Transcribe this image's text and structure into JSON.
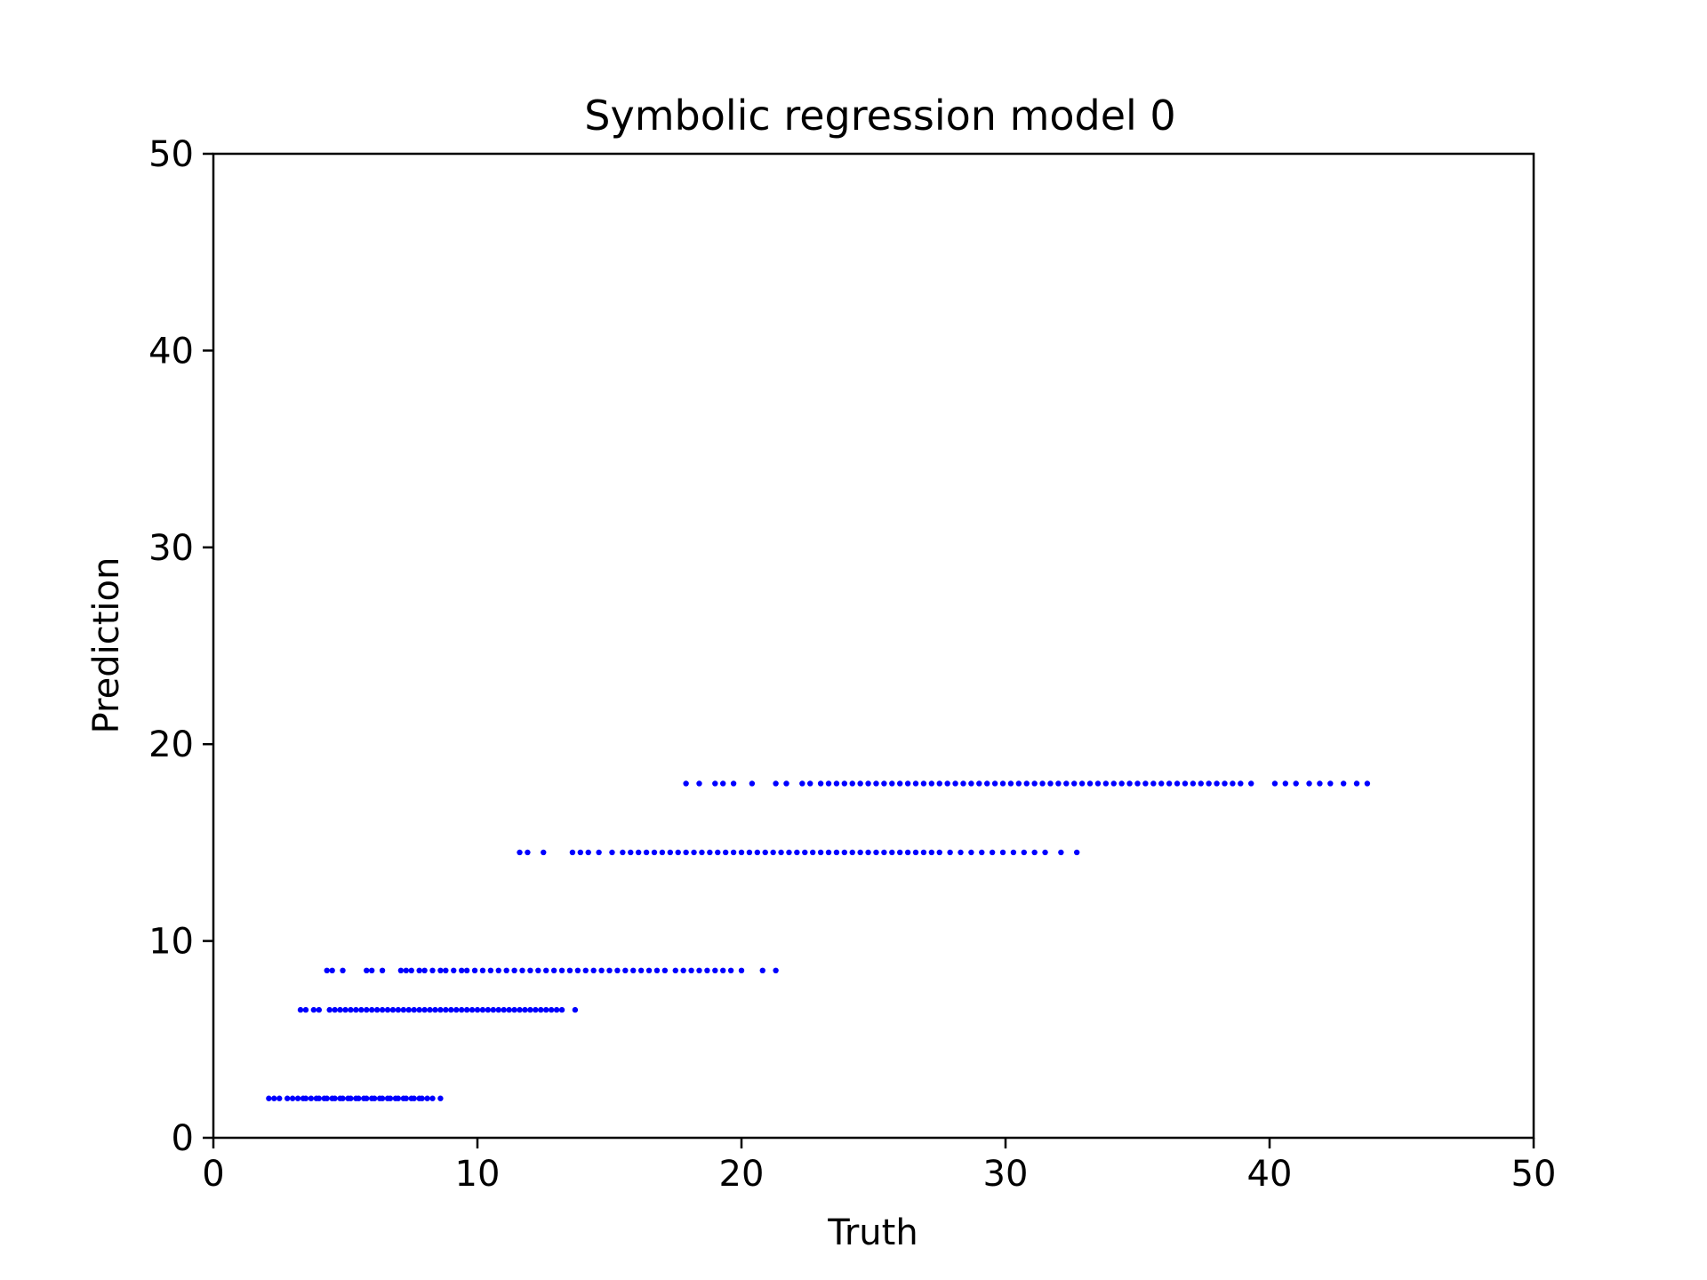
{
  "chart_data": {
    "type": "scatter",
    "title": "Symbolic regression model 0",
    "xlabel": "Truth",
    "ylabel": "Prediction",
    "xlim": [
      0,
      50
    ],
    "ylim": [
      0,
      50
    ],
    "xticks": [
      "0",
      "10",
      "20",
      "30",
      "40",
      "50"
    ],
    "yticks": [
      "0",
      "10",
      "20",
      "30",
      "40",
      "50"
    ],
    "grid": false,
    "marker_color": "#0000ff",
    "clusters": [
      {
        "y": 2.0,
        "x": [
          2.1,
          2.3,
          2.5,
          2.8,
          3.0,
          3.2,
          3.4,
          3.5,
          3.7,
          3.9,
          4.0,
          4.2,
          4.3,
          4.5,
          4.6,
          4.8,
          4.9,
          5.1,
          5.2,
          5.4,
          5.5,
          5.7,
          5.8,
          6.0,
          6.1,
          6.3,
          6.4,
          6.6,
          6.7,
          6.9,
          7.0,
          7.2,
          7.3,
          7.5,
          7.6,
          7.8,
          7.9,
          8.1,
          8.3,
          8.6
        ]
      },
      {
        "y": 6.5,
        "x": [
          3.3,
          3.5,
          3.8,
          4.0,
          4.4,
          4.6,
          4.8,
          5.0,
          5.2,
          5.4,
          5.6,
          5.8,
          6.0,
          6.2,
          6.4,
          6.6,
          6.8,
          7.0,
          7.2,
          7.4,
          7.6,
          7.8,
          8.0,
          8.2,
          8.4,
          8.6,
          8.8,
          9.0,
          9.2,
          9.4,
          9.6,
          9.8,
          10.0,
          10.2,
          10.4,
          10.6,
          10.8,
          11.0,
          11.2,
          11.4,
          11.6,
          11.8,
          12.0,
          12.2,
          12.4,
          12.6,
          12.8,
          13.0,
          13.2,
          13.7
        ]
      },
      {
        "y": 8.5,
        "x": [
          4.3,
          4.5,
          4.9,
          5.8,
          6.0,
          6.4,
          7.1,
          7.3,
          7.5,
          7.8,
          8.0,
          8.3,
          8.6,
          8.8,
          9.1,
          9.4,
          9.6,
          9.9,
          10.2,
          10.5,
          10.8,
          11.1,
          11.4,
          11.7,
          12.0,
          12.3,
          12.6,
          12.9,
          13.2,
          13.5,
          13.8,
          14.1,
          14.4,
          14.7,
          15.0,
          15.3,
          15.6,
          15.9,
          16.2,
          16.5,
          16.8,
          17.1,
          17.5,
          17.8,
          18.1,
          18.4,
          18.7,
          19.0,
          19.3,
          19.6,
          20.0,
          20.8,
          21.3
        ]
      },
      {
        "y": 14.5,
        "x": [
          11.6,
          11.9,
          12.5,
          13.6,
          13.9,
          14.2,
          14.6,
          15.1,
          15.5,
          15.8,
          16.1,
          16.4,
          16.7,
          17.0,
          17.3,
          17.6,
          17.9,
          18.2,
          18.5,
          18.8,
          19.1,
          19.4,
          19.7,
          20.0,
          20.3,
          20.6,
          20.9,
          21.2,
          21.5,
          21.8,
          22.1,
          22.4,
          22.7,
          23.0,
          23.3,
          23.6,
          23.9,
          24.2,
          24.5,
          24.8,
          25.1,
          25.4,
          25.7,
          26.0,
          26.3,
          26.6,
          26.9,
          27.2,
          27.5,
          27.9,
          28.3,
          28.7,
          29.1,
          29.5,
          29.9,
          30.3,
          30.7,
          31.1,
          31.5,
          32.1,
          32.7
        ]
      },
      {
        "y": 18.0,
        "x": [
          17.9,
          18.4,
          19.0,
          19.3,
          19.7,
          20.4,
          21.3,
          21.7,
          22.3,
          22.6,
          23.0,
          23.3,
          23.6,
          23.9,
          24.2,
          24.5,
          24.8,
          25.1,
          25.4,
          25.7,
          26.0,
          26.3,
          26.6,
          26.9,
          27.2,
          27.5,
          27.8,
          28.1,
          28.4,
          28.7,
          29.0,
          29.3,
          29.6,
          29.9,
          30.2,
          30.5,
          30.8,
          31.1,
          31.4,
          31.7,
          32.0,
          32.3,
          32.6,
          32.9,
          33.2,
          33.5,
          33.8,
          34.1,
          34.4,
          34.7,
          35.0,
          35.3,
          35.6,
          35.9,
          36.2,
          36.5,
          36.8,
          37.1,
          37.4,
          37.7,
          38.0,
          38.3,
          38.6,
          38.9,
          39.3,
          40.2,
          40.6,
          41.0,
          41.5,
          41.9,
          42.3,
          42.8,
          43.3,
          43.7
        ]
      }
    ]
  }
}
